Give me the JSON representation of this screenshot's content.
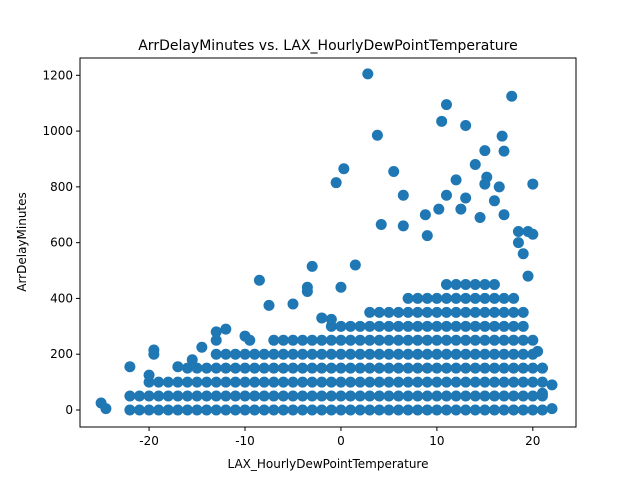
{
  "chart_data": {
    "type": "scatter",
    "title": "ArrDelayMinutes vs. LAX_HourlyDewPointTemperature",
    "x_label": "LAX_HourlyDewPointTemperature",
    "y_label": "ArrDelayMinutes",
    "color": "#1f77b4",
    "xlim": [
      -27.2,
      24.5
    ],
    "ylim": [
      -61,
      1262
    ],
    "xticks": [
      -20,
      -10,
      0,
      10,
      20
    ],
    "yticks": [
      0,
      200,
      400,
      600,
      800,
      1000,
      1200
    ],
    "x": [
      -22,
      -21,
      -20,
      -19,
      -18,
      -17,
      -16,
      -15,
      -14,
      -13,
      -12,
      -11,
      -10,
      -9,
      -8,
      -7,
      -6,
      -5,
      -4,
      -3,
      -2,
      -1,
      0,
      1,
      2,
      3,
      4,
      5,
      6,
      7,
      8,
      9,
      10,
      11,
      12,
      13,
      14,
      15,
      16,
      17,
      18,
      19,
      20,
      21,
      -22,
      -21,
      -20,
      -19,
      -18,
      -17,
      -16,
      -15,
      -14,
      -13,
      -12,
      -11,
      -10,
      -9,
      -8,
      -7,
      -6,
      -5,
      -4,
      -3,
      -2,
      -1,
      0,
      1,
      2,
      3,
      4,
      5,
      6,
      7,
      8,
      9,
      10,
      11,
      12,
      13,
      14,
      15,
      16,
      17,
      18,
      19,
      20,
      21,
      -20,
      -19,
      -18,
      -17,
      -16,
      -15,
      -14,
      -13,
      -12,
      -11,
      -10,
      -9,
      -8,
      -7,
      -6,
      -5,
      -4,
      -3,
      -2,
      -1,
      0,
      1,
      2,
      3,
      4,
      5,
      6,
      7,
      8,
      9,
      10,
      11,
      12,
      13,
      14,
      15,
      16,
      17,
      18,
      19,
      20,
      21,
      -16,
      -15,
      -14,
      -13,
      -12,
      -11,
      -10,
      -9,
      -8,
      -7,
      -6,
      -5,
      -4,
      -3,
      -2,
      -1,
      0,
      1,
      2,
      3,
      4,
      5,
      6,
      7,
      8,
      9,
      10,
      11,
      12,
      13,
      14,
      15,
      16,
      17,
      18,
      19,
      20,
      21,
      -13,
      -12,
      -11,
      -10,
      -9,
      -8,
      -7,
      -6,
      -5,
      -4,
      -3,
      -2,
      -1,
      0,
      1,
      2,
      3,
      4,
      5,
      6,
      7,
      8,
      9,
      10,
      11,
      12,
      13,
      14,
      15,
      16,
      17,
      18,
      19,
      20,
      -7,
      -6,
      -5,
      -4,
      -3,
      -2,
      -1,
      0,
      1,
      2,
      3,
      4,
      5,
      6,
      7,
      8,
      9,
      10,
      11,
      12,
      13,
      14,
      15,
      16,
      17,
      18,
      19,
      20,
      -1,
      0,
      1,
      2,
      3,
      4,
      5,
      6,
      7,
      8,
      9,
      10,
      11,
      12,
      13,
      14,
      15,
      16,
      17,
      18,
      19,
      3,
      4,
      5,
      6,
      7,
      8,
      9,
      10,
      11,
      12,
      13,
      14,
      15,
      16,
      17,
      18,
      19,
      7,
      8,
      9,
      10,
      11,
      12,
      13,
      14,
      15,
      16,
      17,
      18,
      11,
      12,
      13,
      14,
      15,
      16,
      2.8,
      11,
      17.8,
      10.5,
      13,
      3.8,
      16.8,
      15,
      17,
      0.3,
      5.5,
      -0.5,
      15.2,
      15,
      16.5,
      20,
      12,
      11,
      6.5,
      14,
      13,
      8.8,
      10.2,
      12.5,
      16,
      17,
      14.5,
      18.5,
      19.5,
      20,
      4.2,
      6.5,
      9,
      1.5,
      -3,
      -8.5,
      -3.5,
      -3.5,
      -5,
      -7.5,
      -2,
      -1,
      0,
      -12,
      -13,
      -14.5,
      -19.5,
      -19.5,
      -22,
      -20,
      -17,
      -15.5,
      -13,
      -10,
      -9.5,
      -25,
      -24.5,
      22,
      22,
      21,
      21,
      20.5,
      19.5,
      19,
      18.5
    ],
    "values": [
      0,
      0,
      0,
      0,
      0,
      0,
      0,
      0,
      0,
      0,
      0,
      0,
      0,
      0,
      0,
      0,
      0,
      0,
      0,
      0,
      0,
      0,
      0,
      0,
      0,
      0,
      0,
      0,
      0,
      0,
      0,
      0,
      0,
      0,
      0,
      0,
      0,
      0,
      0,
      0,
      0,
      0,
      0,
      0,
      50,
      50,
      50,
      50,
      50,
      50,
      50,
      50,
      50,
      50,
      50,
      50,
      50,
      50,
      50,
      50,
      50,
      50,
      50,
      50,
      50,
      50,
      50,
      50,
      50,
      50,
      50,
      50,
      50,
      50,
      50,
      50,
      50,
      50,
      50,
      50,
      50,
      50,
      50,
      50,
      50,
      50,
      50,
      50,
      100,
      100,
      100,
      100,
      100,
      100,
      100,
      100,
      100,
      100,
      100,
      100,
      100,
      100,
      100,
      100,
      100,
      100,
      100,
      100,
      100,
      100,
      100,
      100,
      100,
      100,
      100,
      100,
      100,
      100,
      100,
      100,
      100,
      100,
      100,
      100,
      100,
      100,
      100,
      100,
      100,
      100,
      150,
      150,
      150,
      150,
      150,
      150,
      150,
      150,
      150,
      150,
      150,
      150,
      150,
      150,
      150,
      150,
      150,
      150,
      150,
      150,
      150,
      150,
      150,
      150,
      150,
      150,
      150,
      150,
      150,
      150,
      150,
      150,
      150,
      150,
      150,
      150,
      150,
      150,
      200,
      200,
      200,
      200,
      200,
      200,
      200,
      200,
      200,
      200,
      200,
      200,
      200,
      200,
      200,
      200,
      200,
      200,
      200,
      200,
      200,
      200,
      200,
      200,
      200,
      200,
      200,
      200,
      200,
      200,
      200,
      200,
      200,
      200,
      250,
      250,
      250,
      250,
      250,
      250,
      250,
      250,
      250,
      250,
      250,
      250,
      250,
      250,
      250,
      250,
      250,
      250,
      250,
      250,
      250,
      250,
      250,
      250,
      250,
      250,
      250,
      250,
      300,
      300,
      300,
      300,
      300,
      300,
      300,
      300,
      300,
      300,
      300,
      300,
      300,
      300,
      300,
      300,
      300,
      300,
      300,
      300,
      300,
      350,
      350,
      350,
      350,
      350,
      350,
      350,
      350,
      350,
      350,
      350,
      350,
      350,
      350,
      350,
      350,
      350,
      400,
      400,
      400,
      400,
      400,
      400,
      400,
      400,
      400,
      400,
      400,
      400,
      450,
      450,
      450,
      450,
      450,
      450,
      1205,
      1095,
      1125,
      1035,
      1020,
      985,
      982,
      930,
      928,
      865,
      855,
      815,
      835,
      810,
      800,
      810,
      825,
      770,
      770,
      880,
      760,
      700,
      720,
      720,
      750,
      700,
      690,
      640,
      640,
      630,
      665,
      660,
      625,
      520,
      515,
      465,
      440,
      425,
      380,
      375,
      330,
      325,
      440,
      290,
      280,
      225,
      215,
      200,
      155,
      125,
      155,
      180,
      250,
      265,
      250,
      25,
      5,
      90,
      5,
      60,
      150,
      210,
      480,
      560,
      600
    ]
  }
}
